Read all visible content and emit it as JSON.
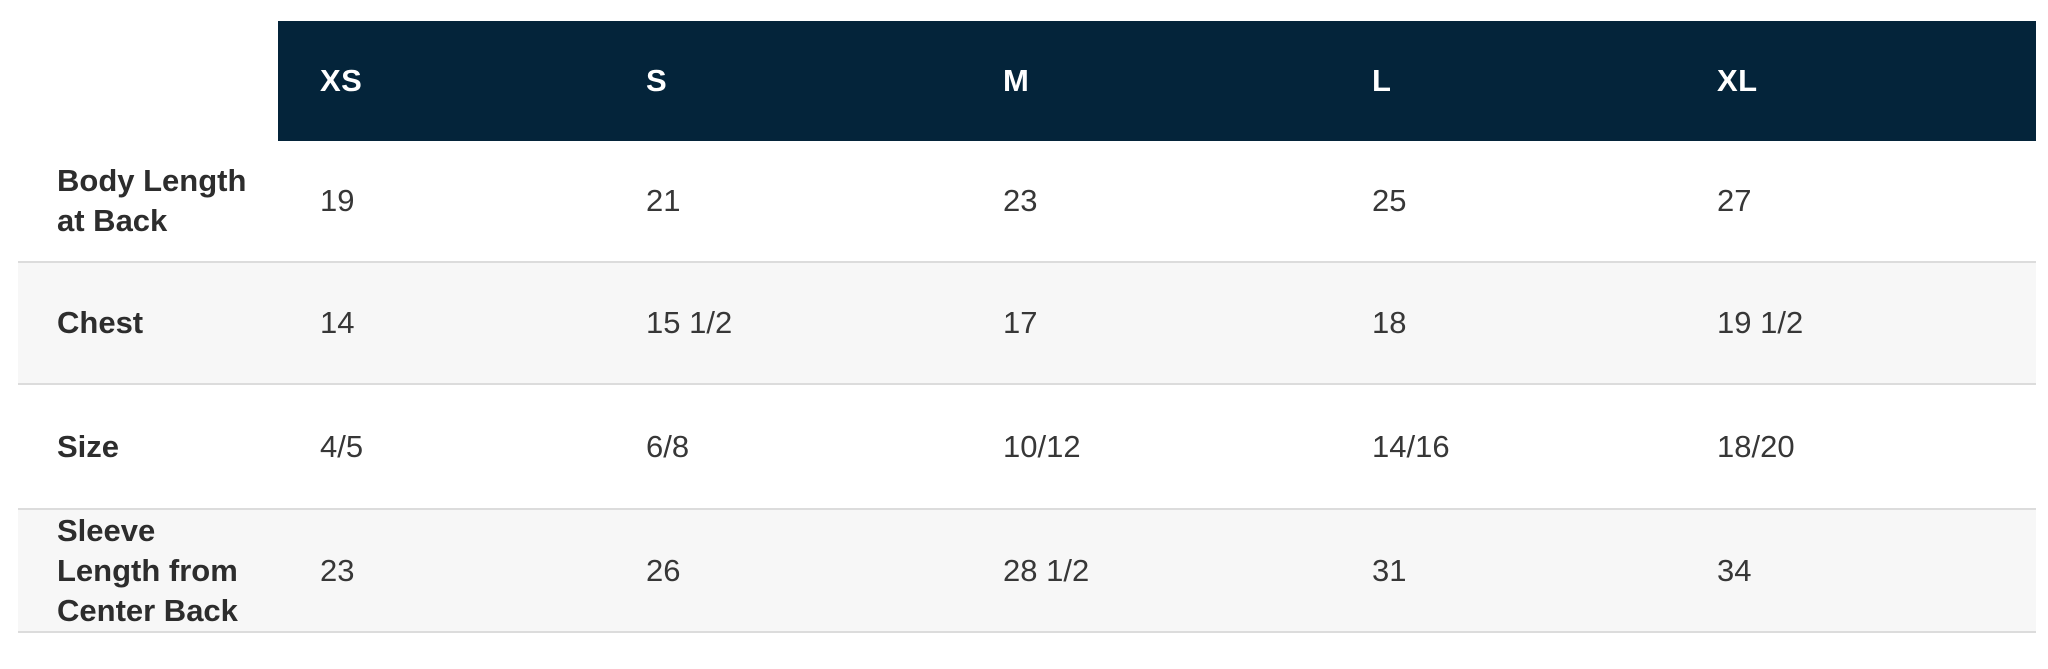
{
  "size_chart": {
    "columns": [
      "XS",
      "S",
      "M",
      "L",
      "XL"
    ],
    "rows": [
      {
        "label": "Body Length\nat Back",
        "values": [
          "19",
          "21",
          "23",
          "25",
          "27"
        ]
      },
      {
        "label": "Chest",
        "values": [
          "14",
          "15 1/2",
          "17",
          "18",
          "19 1/2"
        ]
      },
      {
        "label": "Size",
        "values": [
          "4/5",
          "6/8",
          "10/12",
          "14/16",
          "18/20"
        ]
      },
      {
        "label": "Sleeve\nLength from\nCenter Back",
        "values": [
          "23",
          "26",
          "28 1/2",
          "31",
          "34"
        ]
      }
    ],
    "colors": {
      "header_bg": "#04243a",
      "header_text": "#ffffff",
      "row_stripe": "#f7f7f7",
      "divider": "#dcdcdc",
      "label_text": "#2d2d2d",
      "value_text": "#373737",
      "page_bg": "#ffffff"
    }
  }
}
